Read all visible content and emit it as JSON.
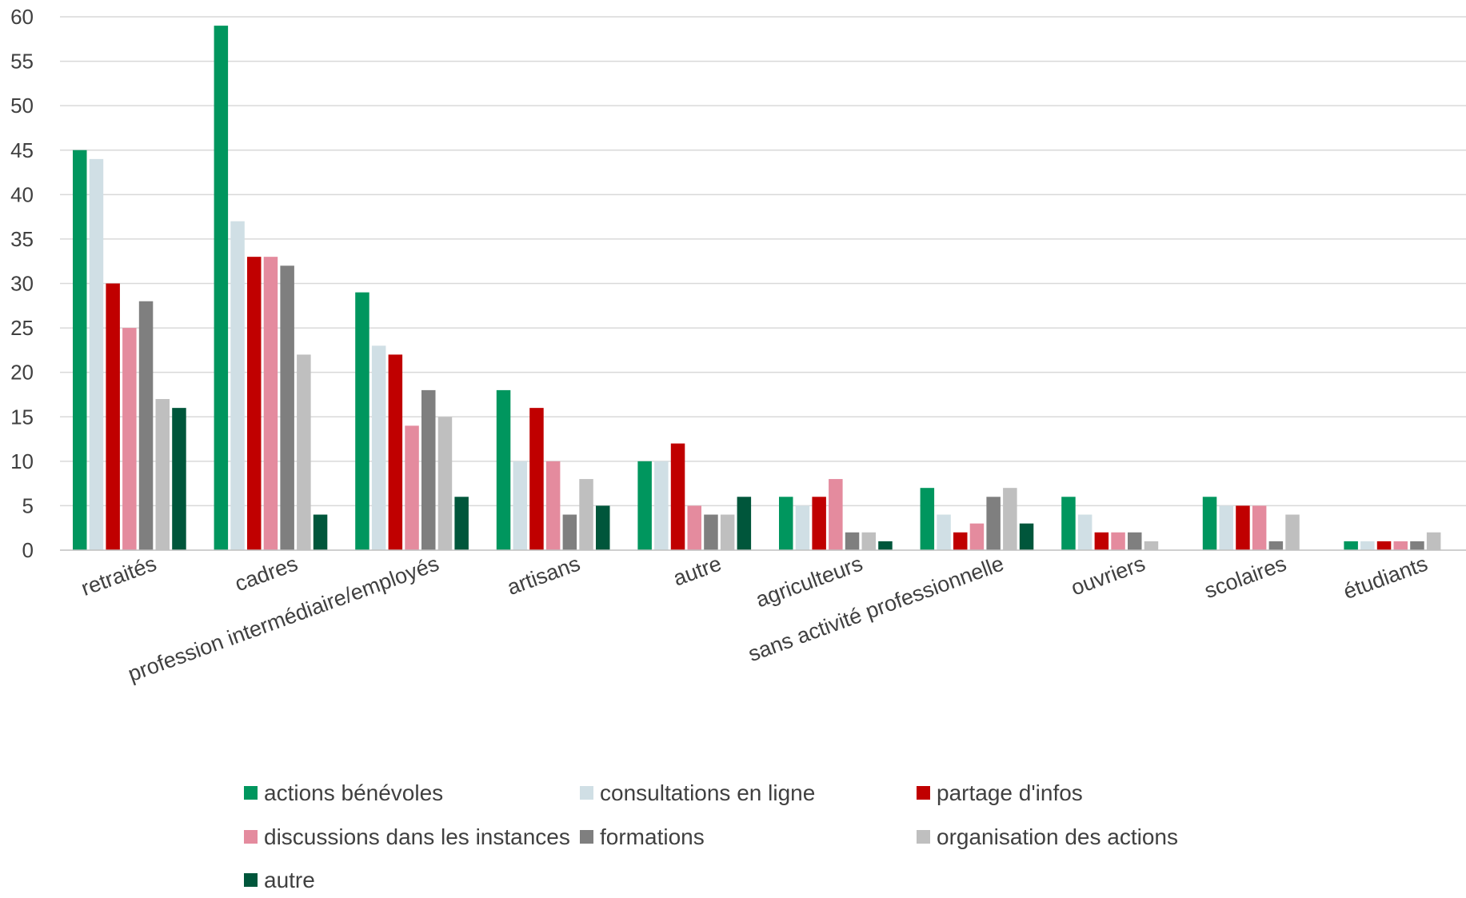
{
  "chart_data": {
    "type": "bar",
    "title": "",
    "xlabel": "",
    "ylabel": "",
    "ylim": [
      0,
      60
    ],
    "yticks": [
      0,
      5,
      10,
      15,
      20,
      25,
      30,
      35,
      40,
      45,
      50,
      55,
      60
    ],
    "grid": "horizontal",
    "legend_position": "bottom",
    "categories": [
      "retraités",
      "cadres",
      "profession intermédiaire/employés",
      "artisans",
      "autre",
      "agriculteurs",
      "sans activité professionnelle",
      "ouvriers",
      "scolaires",
      "étudiants"
    ],
    "series": [
      {
        "name": "actions bénévoles",
        "color": "#00965E",
        "values": [
          45,
          59,
          29,
          18,
          10,
          6,
          7,
          6,
          6,
          1
        ]
      },
      {
        "name": "consultations en ligne",
        "color": "#D0DFE5",
        "values": [
          44,
          37,
          23,
          10,
          10,
          5,
          4,
          4,
          5,
          1
        ]
      },
      {
        "name": "partage d'infos",
        "color": "#C00000",
        "values": [
          30,
          33,
          22,
          16,
          12,
          6,
          2,
          2,
          5,
          1
        ]
      },
      {
        "name": "discussions dans les instances",
        "color": "#E48B9E",
        "values": [
          25,
          33,
          14,
          10,
          5,
          8,
          3,
          2,
          5,
          1
        ]
      },
      {
        "name": "formations",
        "color": "#7F7F7F",
        "values": [
          28,
          32,
          18,
          4,
          4,
          2,
          6,
          2,
          1,
          1
        ]
      },
      {
        "name": "organisation des actions",
        "color": "#BFBFBF",
        "values": [
          17,
          22,
          15,
          8,
          4,
          2,
          7,
          1,
          4,
          2
        ]
      },
      {
        "name": "autre",
        "color": "#00563B",
        "values": [
          16,
          4,
          6,
          5,
          6,
          1,
          3,
          0,
          0,
          0
        ]
      }
    ]
  }
}
